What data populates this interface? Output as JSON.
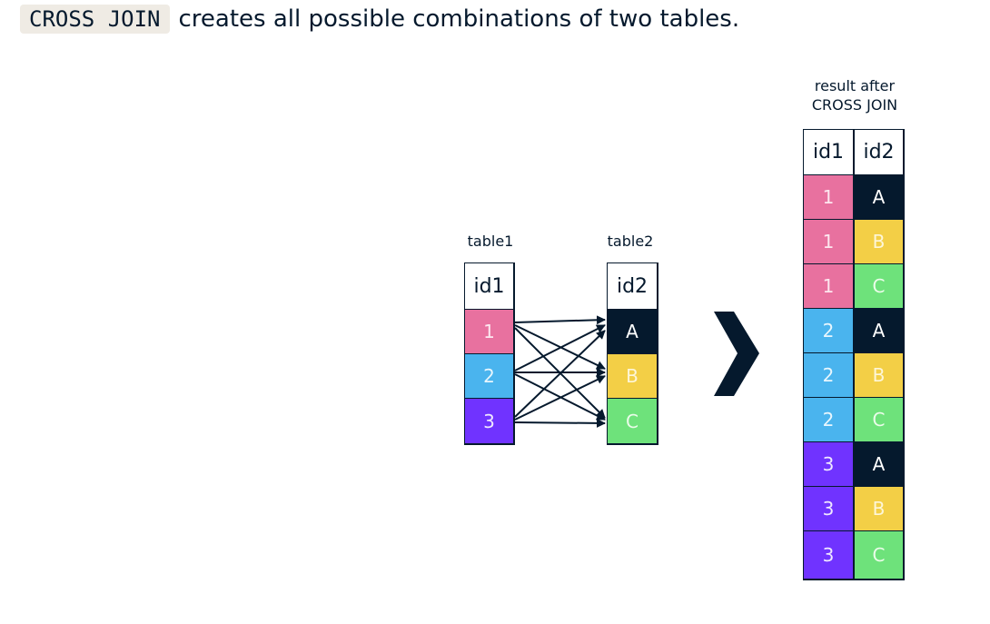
{
  "headline": {
    "code": "CROSS JOIN",
    "text": "creates all possible combinations of two tables."
  },
  "table1": {
    "caption": "table1",
    "header": "id1",
    "rows": [
      {
        "value": "1",
        "color": "#e8719f"
      },
      {
        "value": "2",
        "color": "#4ab4ee"
      },
      {
        "value": "3",
        "color": "#7033ff"
      }
    ]
  },
  "table2": {
    "caption": "table2",
    "header": "id2",
    "rows": [
      {
        "value": "A",
        "color": "#05192d"
      },
      {
        "value": "B",
        "color": "#f3cf46"
      },
      {
        "value": "C",
        "color": "#6ee27b"
      }
    ]
  },
  "result": {
    "caption_line1": "result after",
    "caption_line2": "CROSS JOIN",
    "headers": [
      "id1",
      "id2"
    ],
    "rows": [
      [
        "1",
        "A"
      ],
      [
        "1",
        "B"
      ],
      [
        "1",
        "C"
      ],
      [
        "2",
        "A"
      ],
      [
        "2",
        "B"
      ],
      [
        "2",
        "C"
      ],
      [
        "3",
        "A"
      ],
      [
        "3",
        "B"
      ],
      [
        "3",
        "C"
      ]
    ]
  },
  "colors": {
    "pink": "#e8719f",
    "blue": "#4ab4ee",
    "purple": "#7033ff",
    "navy": "#05192d",
    "yellow": "#f3cf46",
    "green": "#6ee27b"
  },
  "icons": {
    "arrow": "chevron-right-icon"
  }
}
